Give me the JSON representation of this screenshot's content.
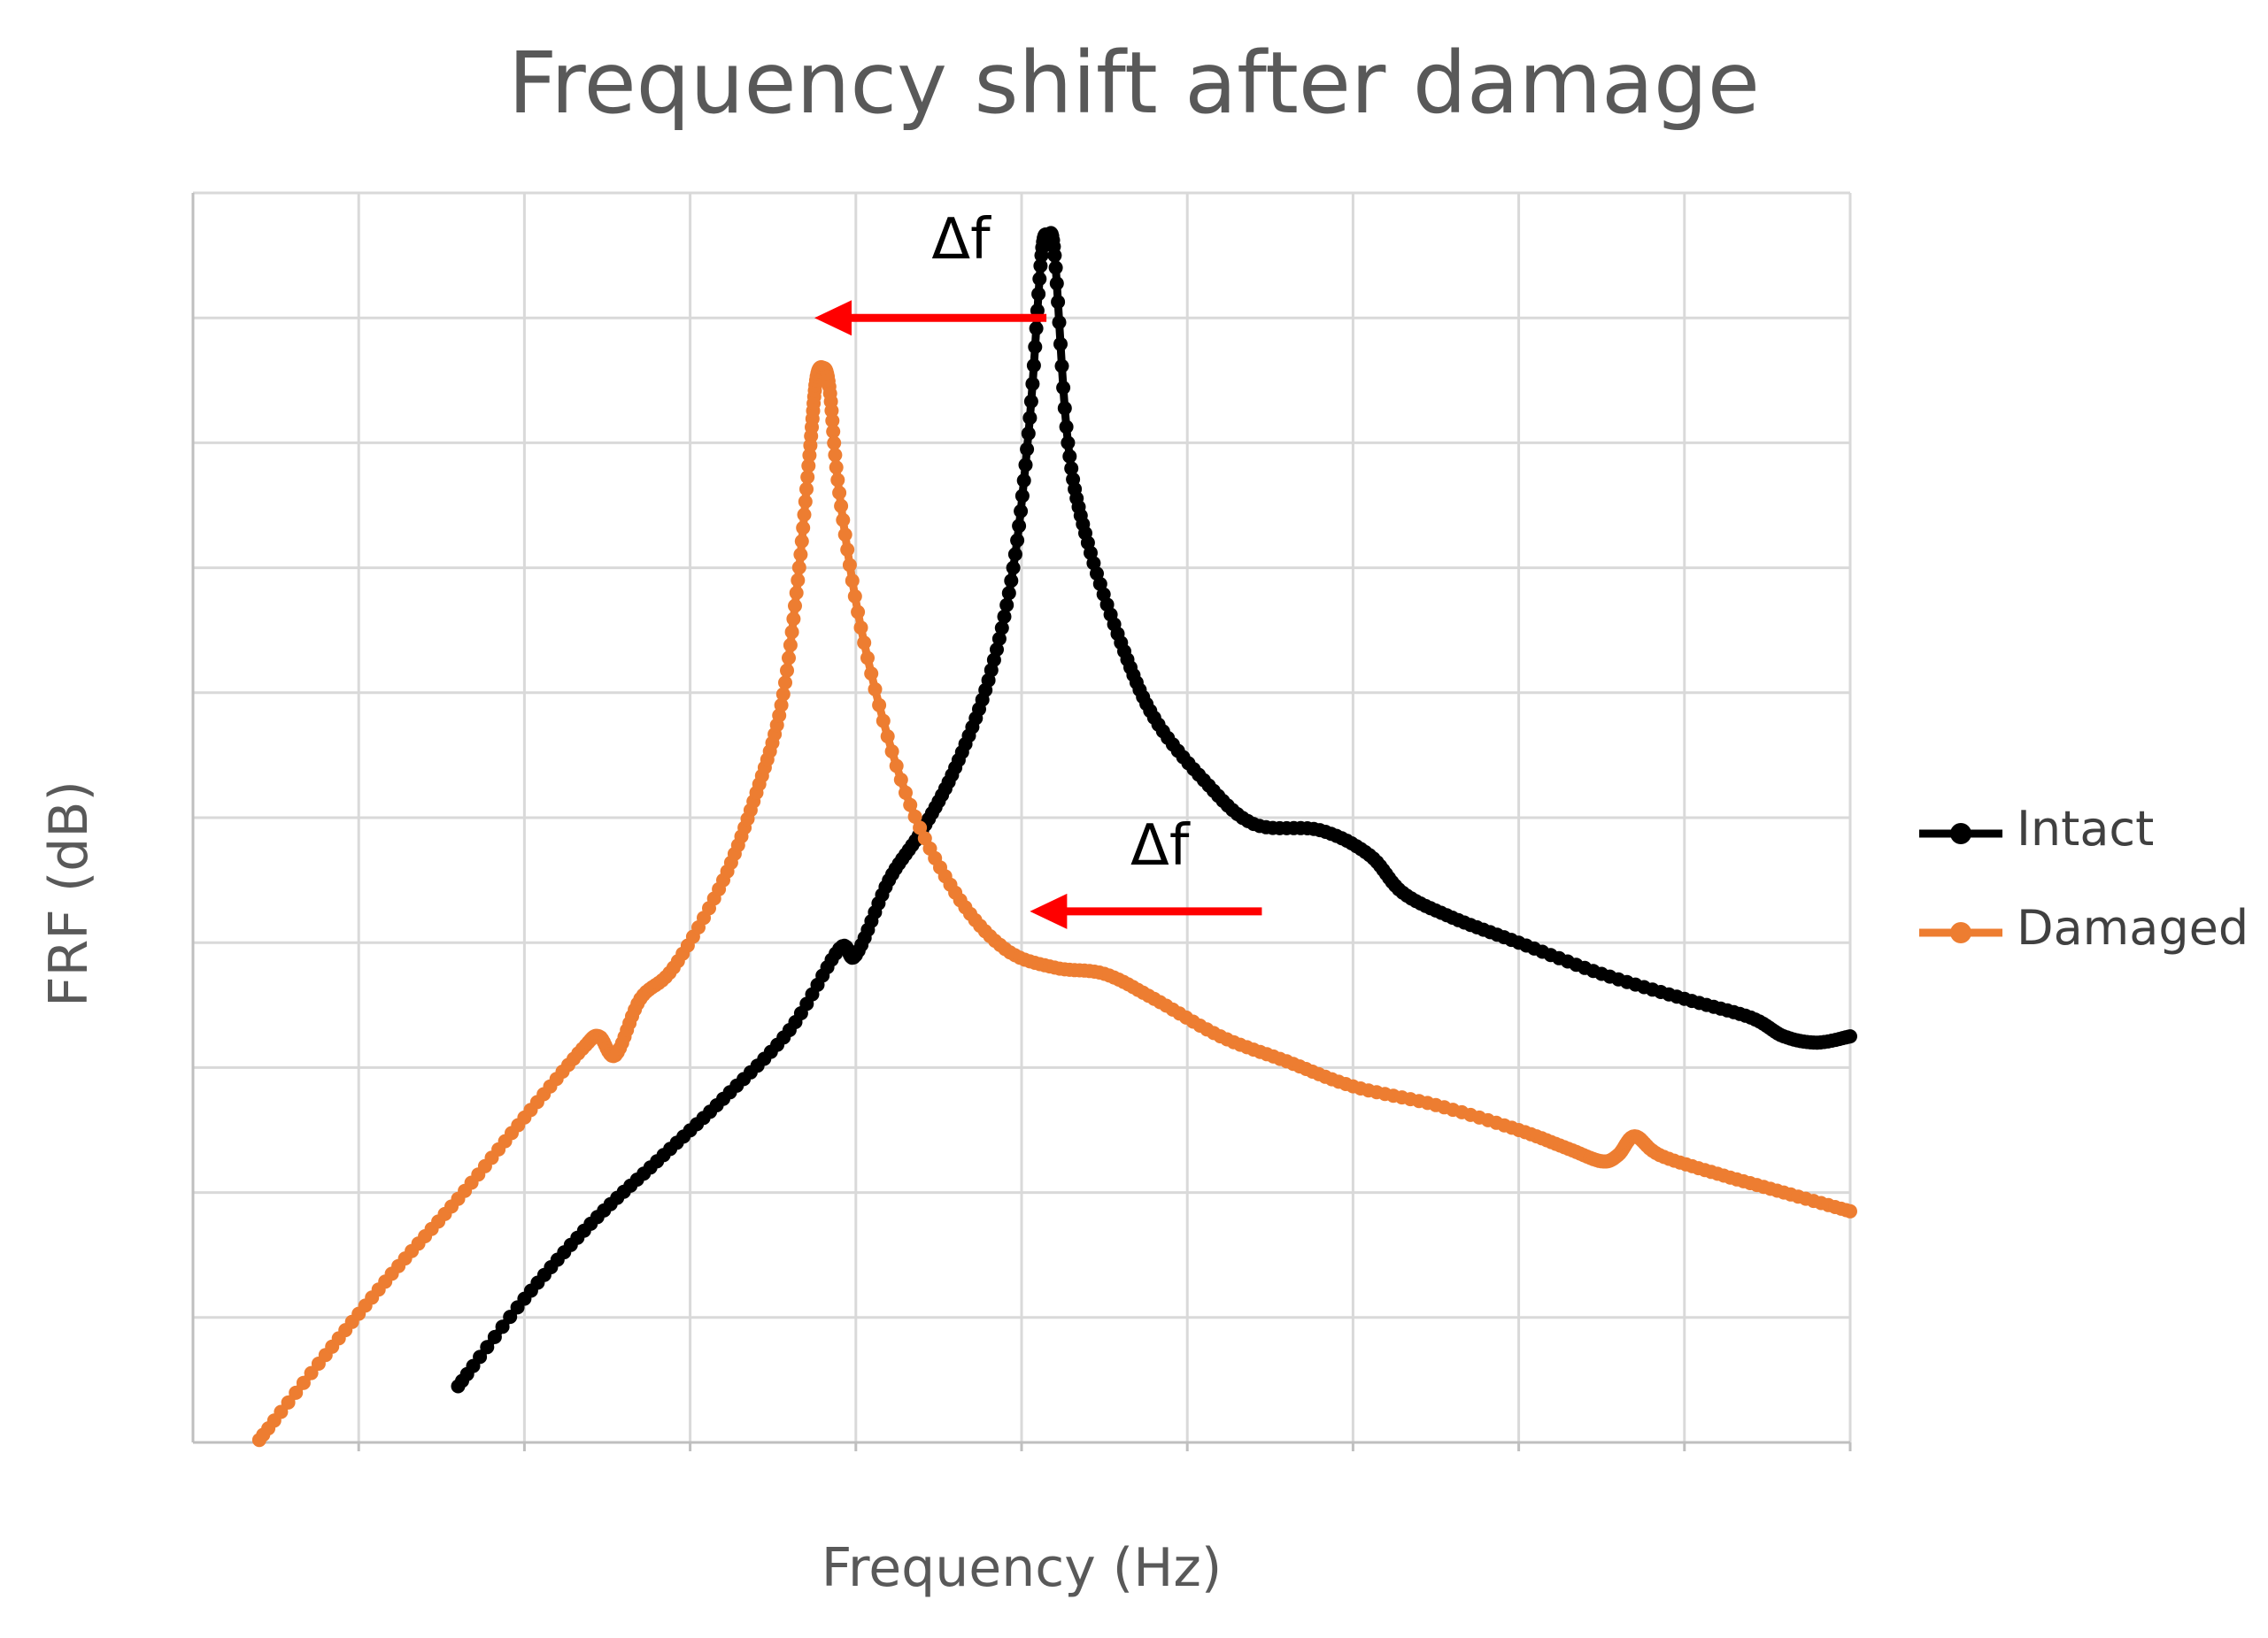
{
  "chart_data": {
    "type": "line",
    "title": "Frequency shift after damage",
    "xlabel": "Frequency (Hz)",
    "ylabel": "FRF (dB)",
    "xlim": [
      0,
      10
    ],
    "ylim": [
      0,
      10
    ],
    "grid": true,
    "tick_labels_shown": false,
    "legend_position": "right",
    "series": [
      {
        "name": "Intact",
        "color": "#000000",
        "points": [
          [
            1.6,
            0.45
          ],
          [
            2.0,
            1.15
          ],
          [
            2.4,
            1.75
          ],
          [
            2.8,
            2.25
          ],
          [
            3.2,
            2.75
          ],
          [
            3.6,
            3.3
          ],
          [
            3.9,
            3.95
          ],
          [
            4.0,
            3.9
          ],
          [
            4.2,
            4.5
          ],
          [
            4.4,
            4.9
          ],
          [
            4.6,
            5.4
          ],
          [
            4.8,
            6.1
          ],
          [
            4.95,
            7.0
          ],
          [
            5.05,
            8.2
          ],
          [
            5.12,
            9.5
          ],
          [
            5.16,
            9.65
          ],
          [
            5.2,
            9.5
          ],
          [
            5.28,
            8.0
          ],
          [
            5.4,
            7.2
          ],
          [
            5.6,
            6.4
          ],
          [
            5.8,
            5.8
          ],
          [
            6.1,
            5.3
          ],
          [
            6.4,
            4.95
          ],
          [
            6.8,
            4.9
          ],
          [
            7.1,
            4.7
          ],
          [
            7.3,
            4.4
          ],
          [
            7.6,
            4.2
          ],
          [
            8.0,
            4.0
          ],
          [
            8.5,
            3.75
          ],
          [
            9.0,
            3.55
          ],
          [
            9.4,
            3.4
          ],
          [
            9.6,
            3.25
          ],
          [
            9.8,
            3.2
          ],
          [
            10.0,
            3.25
          ]
        ]
      },
      {
        "name": "Damaged",
        "color": "#ED7D31",
        "points": [
          [
            0.4,
            0.02
          ],
          [
            0.8,
            0.7
          ],
          [
            1.2,
            1.35
          ],
          [
            1.6,
            1.95
          ],
          [
            2.0,
            2.6
          ],
          [
            2.35,
            3.15
          ],
          [
            2.45,
            3.25
          ],
          [
            2.55,
            3.1
          ],
          [
            2.7,
            3.55
          ],
          [
            2.9,
            3.8
          ],
          [
            3.2,
            4.5
          ],
          [
            3.4,
            5.2
          ],
          [
            3.55,
            5.9
          ],
          [
            3.65,
            6.9
          ],
          [
            3.72,
            7.9
          ],
          [
            3.76,
            8.5
          ],
          [
            3.8,
            8.6
          ],
          [
            3.84,
            8.45
          ],
          [
            3.9,
            7.6
          ],
          [
            4.05,
            6.4
          ],
          [
            4.3,
            5.2
          ],
          [
            4.6,
            4.4
          ],
          [
            4.9,
            3.95
          ],
          [
            5.2,
            3.8
          ],
          [
            5.5,
            3.75
          ],
          [
            5.8,
            3.55
          ],
          [
            6.2,
            3.25
          ],
          [
            6.6,
            3.05
          ],
          [
            7.0,
            2.85
          ],
          [
            7.5,
            2.7
          ],
          [
            8.0,
            2.5
          ],
          [
            8.3,
            2.35
          ],
          [
            8.5,
            2.25
          ],
          [
            8.6,
            2.3
          ],
          [
            8.7,
            2.45
          ],
          [
            8.85,
            2.3
          ],
          [
            9.2,
            2.15
          ],
          [
            9.6,
            2.0
          ],
          [
            10.0,
            1.85
          ]
        ]
      }
    ],
    "annotations": [
      {
        "text": "Δf",
        "x": 4.5,
        "y": 9.6,
        "arrow_from": [
          5.15,
          9.0
        ],
        "arrow_to": [
          3.75,
          9.0
        ],
        "color": "#FF0000"
      },
      {
        "text": "Δf",
        "x": 5.7,
        "y": 4.75,
        "arrow_from": [
          6.45,
          4.25
        ],
        "arrow_to": [
          5.05,
          4.25
        ],
        "color": "#FF0000"
      }
    ]
  }
}
